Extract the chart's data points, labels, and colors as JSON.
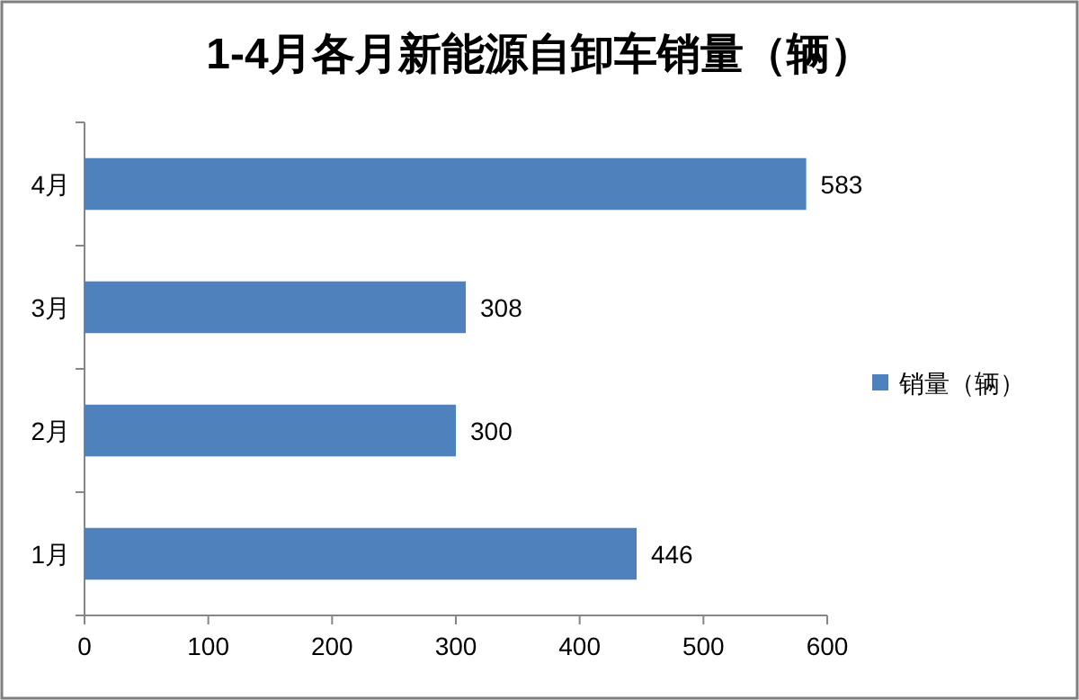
{
  "chart_data": {
    "type": "bar",
    "orientation": "horizontal",
    "title": "1-4月各月新能源自卸车销量（辆）",
    "categories": [
      "4月",
      "3月",
      "2月",
      "1月"
    ],
    "series": [
      {
        "name": "销量（辆）",
        "color": "#4f81bd",
        "values": [
          583,
          308,
          300,
          446
        ]
      }
    ],
    "xlim": [
      0,
      600
    ],
    "xticks": [
      0,
      100,
      200,
      300,
      400,
      500,
      600
    ],
    "data_labels": true,
    "legend": "right"
  }
}
